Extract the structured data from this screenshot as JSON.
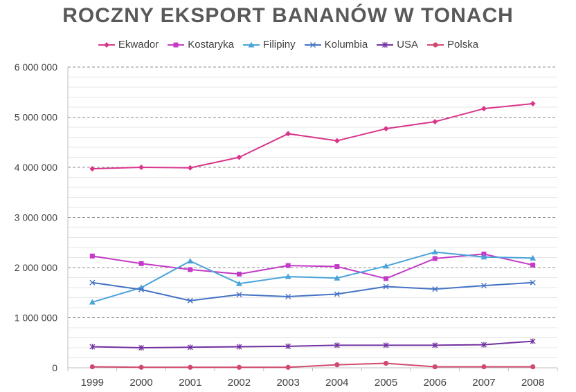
{
  "chart_data": {
    "type": "line",
    "title": "ROCZNY EKSPORT BANANÓW W TONACH",
    "xlabel": "",
    "ylabel": "",
    "categories": [
      "1999",
      "2000",
      "2001",
      "2002",
      "2003",
      "2004",
      "2005",
      "2006",
      "2007",
      "2008"
    ],
    "ylim": [
      0,
      6000000
    ],
    "yticks": [
      0,
      1000000,
      2000000,
      3000000,
      4000000,
      5000000,
      6000000
    ],
    "ytick_labels": [
      "0",
      "1 000 000",
      "2 000 000",
      "3 000 000",
      "4 000 000",
      "5 000 000",
      "6 000 000"
    ],
    "grid": true,
    "legend_position": "top",
    "series": [
      {
        "name": "Ekwador",
        "color": "#d9358a",
        "marker": "diamond",
        "values": [
          3970000,
          4000000,
          3990000,
          4200000,
          4670000,
          4530000,
          4770000,
          4910000,
          5170000,
          5270000
        ]
      },
      {
        "name": "Kostaryka",
        "color": "#c33ac8",
        "marker": "square",
        "values": [
          2230000,
          2080000,
          1960000,
          1870000,
          2040000,
          2020000,
          1780000,
          2180000,
          2270000,
          2050000
        ]
      },
      {
        "name": "Filipiny",
        "color": "#4aa3d9",
        "marker": "triangle",
        "values": [
          1310000,
          1600000,
          2130000,
          1680000,
          1820000,
          1790000,
          2030000,
          2310000,
          2210000,
          2190000
        ]
      },
      {
        "name": "Kolumbia",
        "color": "#4472c4",
        "marker": "x",
        "values": [
          1700000,
          1560000,
          1340000,
          1460000,
          1420000,
          1470000,
          1620000,
          1570000,
          1640000,
          1700000
        ]
      },
      {
        "name": "USA",
        "color": "#7030a0",
        "marker": "star",
        "values": [
          420000,
          400000,
          410000,
          420000,
          430000,
          450000,
          450000,
          450000,
          460000,
          530000
        ]
      },
      {
        "name": "Polska",
        "color": "#d04a6f",
        "marker": "circle",
        "values": [
          20000,
          10000,
          10000,
          10000,
          10000,
          60000,
          90000,
          20000,
          20000,
          20000
        ]
      }
    ]
  }
}
